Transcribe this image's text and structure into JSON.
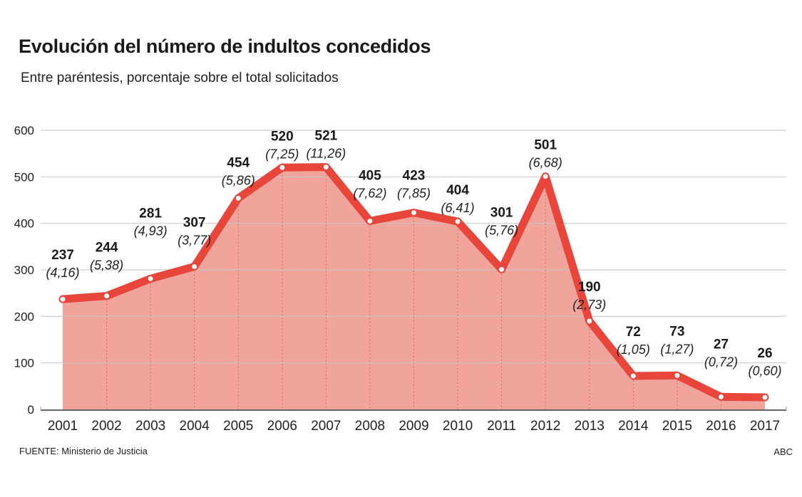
{
  "header": {
    "title": "Evolución del número de indultos concedidos",
    "subtitle": "Entre paréntesis, porcentaje sobre el total solicitados"
  },
  "footer": {
    "source": "FUENTE: Ministerio de Justicia",
    "credit": "ABC"
  },
  "colors": {
    "line": "#e8463a",
    "area": "#f0a49c",
    "grid": "#c8c8c8",
    "axis": "#333333"
  },
  "chart_data": {
    "type": "area",
    "title": "Evolución del número de indultos concedidos",
    "subtitle": "Entre paréntesis, porcentaje sobre el total solicitados",
    "xlabel": "",
    "ylabel": "",
    "ylim": [
      0,
      600
    ],
    "yticks": [
      0,
      100,
      200,
      300,
      400,
      500,
      600
    ],
    "grid": true,
    "legend": "none",
    "categories": [
      "2001",
      "2002",
      "2003",
      "2004",
      "2005",
      "2006",
      "2007",
      "2008",
      "2009",
      "2010",
      "2011",
      "2012",
      "2013",
      "2014",
      "2015",
      "2016",
      "2017"
    ],
    "series": [
      {
        "name": "Indultos concedidos",
        "values": [
          237,
          244,
          281,
          307,
          454,
          520,
          521,
          405,
          423,
          404,
          301,
          501,
          190,
          72,
          73,
          27,
          26
        ],
        "pct_labels": [
          "(4,16)",
          "(5,38)",
          "(4,93)",
          "(3,77)",
          "(5,86)",
          "(7,25)",
          "(11,26)",
          "(7,62)",
          "(7,85)",
          "(6,41)",
          "(5,76)",
          "(6,68)",
          "(2,73)",
          "(1,05)",
          "(1,27)",
          "(0,72)",
          "(0,60)"
        ],
        "pct_values": [
          4.16,
          5.38,
          4.93,
          3.77,
          5.86,
          7.25,
          11.26,
          7.62,
          7.85,
          6.41,
          5.76,
          6.68,
          2.73,
          1.05,
          1.27,
          0.72,
          0.6
        ]
      }
    ],
    "source": "FUENTE: Ministerio de Justicia",
    "credit": "ABC"
  }
}
